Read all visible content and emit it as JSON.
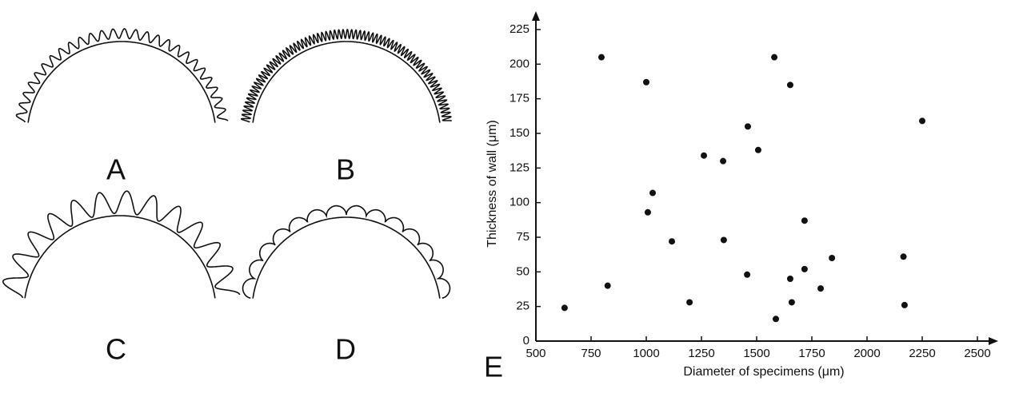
{
  "panel_labels": [
    "A",
    "B",
    "C",
    "D"
  ],
  "chart_data": {
    "type": "scatter",
    "panel_label": "E",
    "x_label": "Diameter of specimens (μm)",
    "y_label": "Thickness of wall (μm)",
    "xlim": [
      500,
      2500
    ],
    "ylim": [
      0,
      225
    ],
    "xticks": [
      500,
      750,
      1000,
      1250,
      1500,
      1750,
      2000,
      2250,
      2500
    ],
    "yticks": [
      0,
      25,
      50,
      75,
      100,
      125,
      150,
      175,
      200,
      225
    ],
    "color": "#111111",
    "x": [
      630,
      797,
      825,
      1000,
      1007,
      1029,
      1116,
      1196,
      1261,
      1348,
      1351,
      1460,
      1457,
      1507,
      1580,
      1587,
      1652,
      1652,
      1659,
      1717,
      1717,
      1790,
      1841,
      2165,
      2170,
      2250
    ],
    "values": [
      24,
      205,
      40,
      187,
      93,
      107,
      72,
      28,
      134,
      130,
      73,
      155,
      48,
      138,
      205,
      16,
      185,
      45,
      28,
      87,
      52,
      38,
      60,
      61,
      26,
      159
    ]
  }
}
